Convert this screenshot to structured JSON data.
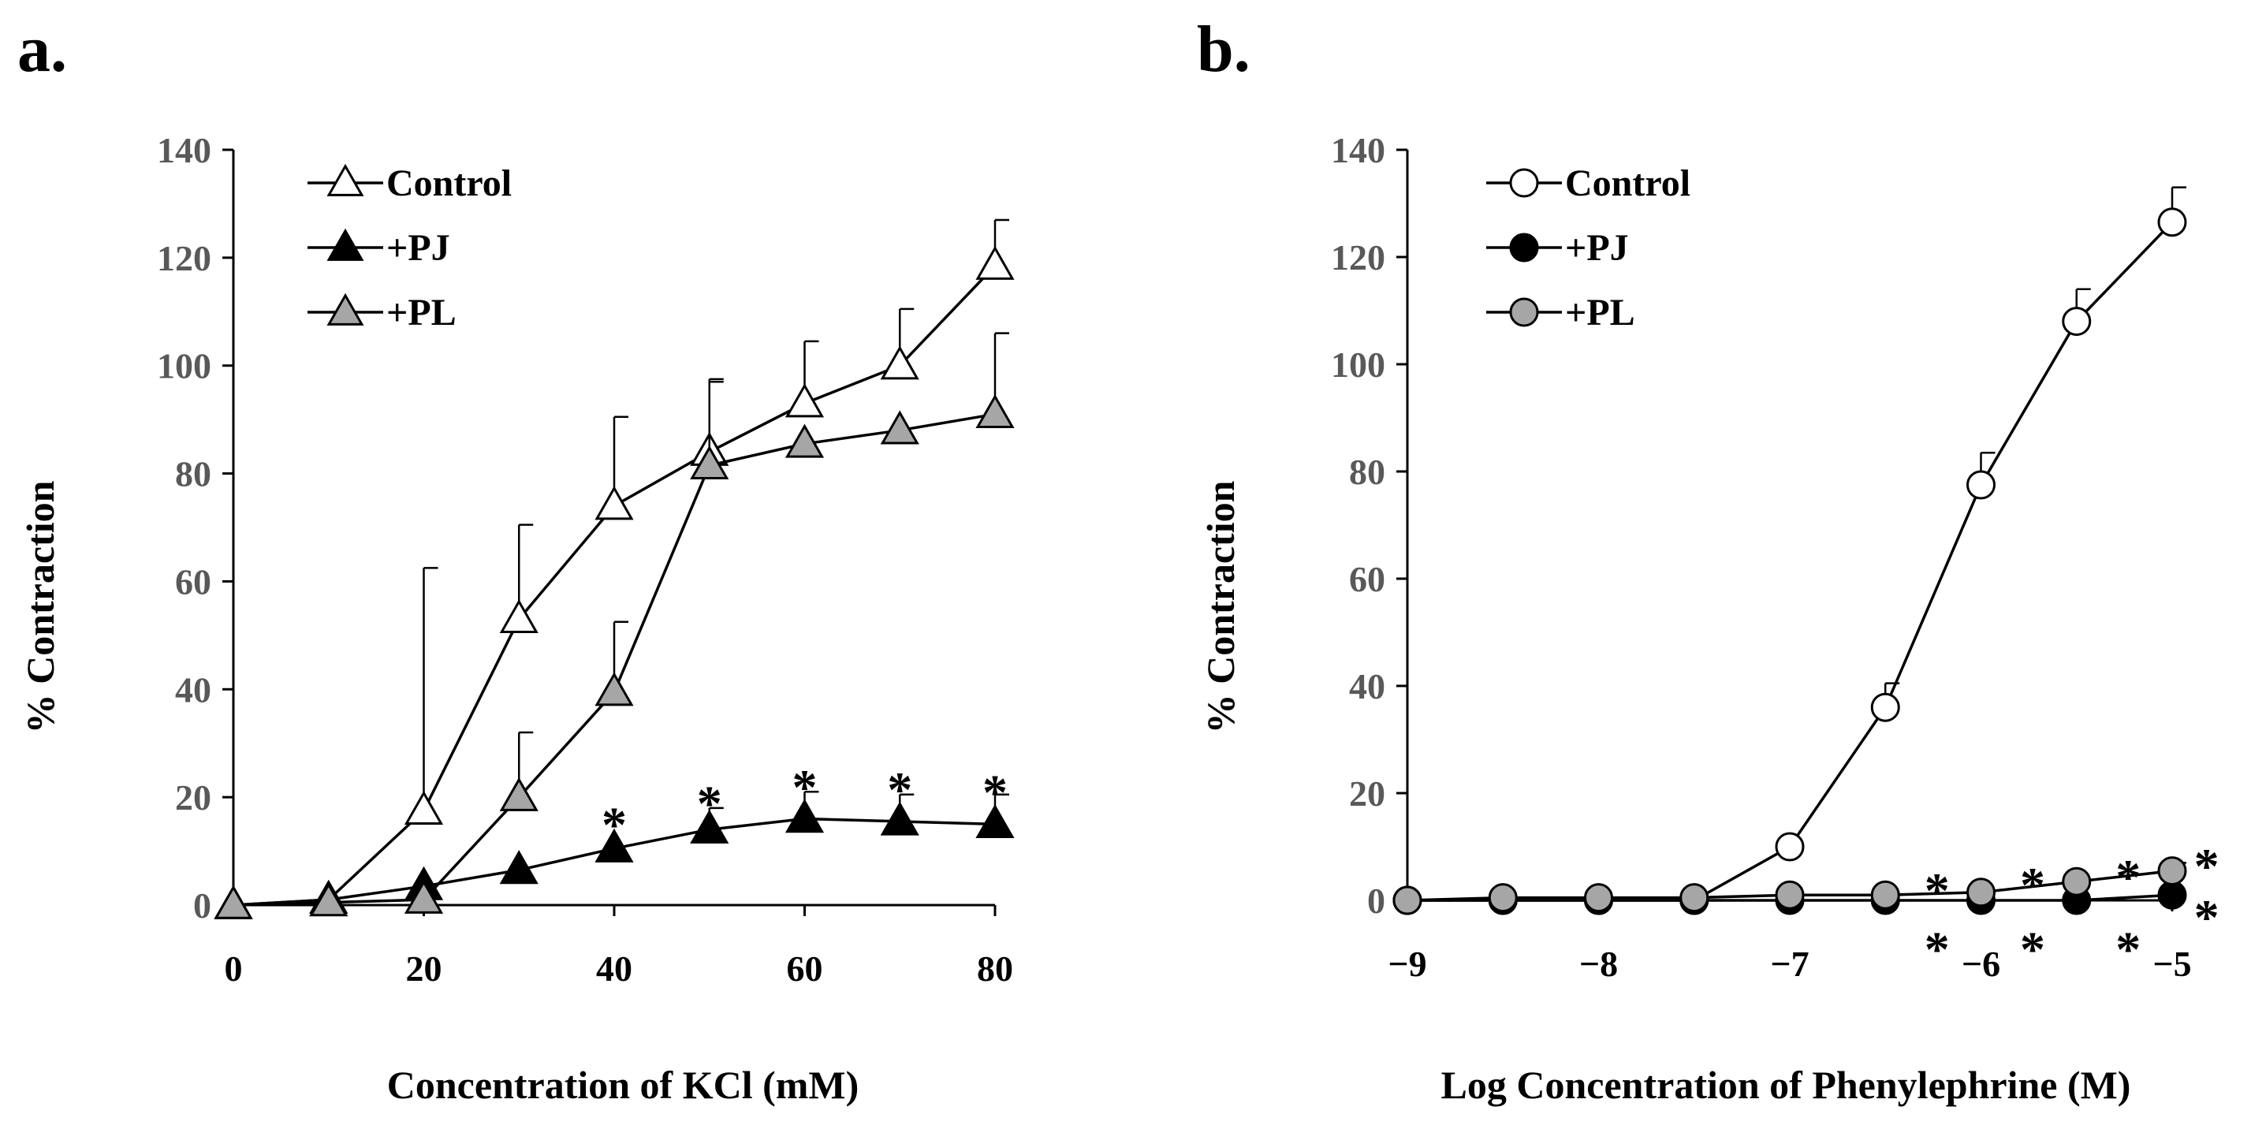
{
  "chart_data": [
    {
      "panel": "a.",
      "type": "line",
      "xlabel": "Concentration of KCl (mM)",
      "ylabel": "% Contraction",
      "xlim": [
        0,
        80
      ],
      "ylim": [
        0,
        140
      ],
      "xticks": [
        "0",
        "20",
        "40",
        "60",
        "80"
      ],
      "xtick_values": [
        0,
        20,
        40,
        60,
        80
      ],
      "yticks": [
        "0",
        "20",
        "40",
        "60",
        "80",
        "100",
        "120",
        "140"
      ],
      "ytick_values": [
        0,
        20,
        40,
        60,
        80,
        100,
        120,
        140
      ],
      "legend_position": "top-left",
      "series": [
        {
          "name": "Control",
          "marker": "triangle",
          "fill": "#ffffff",
          "x": [
            0,
            10,
            20,
            30,
            40,
            50,
            60,
            70,
            80
          ],
          "values": [
            0,
            1,
            17.5,
            53,
            74,
            84,
            93,
            100,
            118.5
          ],
          "error": [
            0,
            0,
            45,
            17.5,
            16.5,
            13.5,
            11.5,
            10.5,
            8.5
          ]
        },
        {
          "name": "+PJ",
          "marker": "triangle",
          "fill": "#000000",
          "x": [
            0,
            10,
            20,
            30,
            40,
            50,
            60,
            70,
            80
          ],
          "values": [
            0,
            1,
            3.5,
            6.5,
            10.5,
            14,
            16,
            15.5,
            15
          ],
          "error": [
            0,
            0,
            0,
            0,
            0,
            4,
            5,
            5,
            5.5
          ]
        },
        {
          "name": "+PL",
          "marker": "triangle",
          "fill": "#a6a6a6",
          "x": [
            0,
            10,
            20,
            30,
            40,
            50,
            60,
            70,
            80
          ],
          "values": [
            0,
            0.5,
            1,
            20,
            39.5,
            81.5,
            85.5,
            88,
            91
          ],
          "error": [
            0,
            0,
            0,
            12,
            13,
            15.5,
            0,
            0,
            15
          ]
        }
      ],
      "annotations": [
        {
          "text": "*",
          "x": 40,
          "y": 17
        },
        {
          "text": "*",
          "x": 50,
          "y": 21
        },
        {
          "text": "*",
          "x": 60,
          "y": 24
        },
        {
          "text": "*",
          "x": 70,
          "y": 23.5
        },
        {
          "text": "*",
          "x": 80,
          "y": 23
        }
      ]
    },
    {
      "panel": "b.",
      "type": "line",
      "xlabel": "Log Concentration of Phenylephrine (M)",
      "ylabel": "% Contraction",
      "xlim": [
        -9,
        -5
      ],
      "ylim": [
        0,
        140
      ],
      "xticks": [
        "−9",
        "−8",
        "−7",
        "−6",
        "−5"
      ],
      "xtick_values": [
        -9,
        -8,
        -7,
        -6,
        -5
      ],
      "yticks": [
        "0",
        "20",
        "40",
        "60",
        "80",
        "100",
        "120",
        "140"
      ],
      "ytick_values": [
        0,
        20,
        40,
        60,
        80,
        100,
        120,
        140
      ],
      "legend_position": "top-left",
      "series": [
        {
          "name": "Control",
          "marker": "circle",
          "fill": "#ffffff",
          "x": [
            -9,
            -8.5,
            -8,
            -7.5,
            -7,
            -6.5,
            -6,
            -5.5,
            -5
          ],
          "values": [
            0,
            0,
            0,
            0,
            10,
            36,
            77.5,
            108,
            126.5
          ],
          "error": [
            0,
            0,
            0,
            0,
            0,
            4.5,
            6,
            6,
            6.5
          ]
        },
        {
          "name": "+PJ",
          "marker": "circle",
          "fill": "#000000",
          "x": [
            -9,
            -8.5,
            -8,
            -7.5,
            -7,
            -6.5,
            -6,
            -5.5,
            -5
          ],
          "values": [
            0,
            0,
            0,
            0,
            0,
            0,
            0,
            0,
            1
          ],
          "error": [
            0,
            0,
            0,
            0,
            0,
            0,
            0,
            0,
            0
          ]
        },
        {
          "name": "+PL",
          "marker": "circle",
          "fill": "#a6a6a6",
          "x": [
            -9,
            -8.5,
            -8,
            -7.5,
            -7,
            -6.5,
            -6,
            -5.5,
            -5
          ],
          "values": [
            0,
            0.5,
            0.5,
            0.5,
            1,
            1,
            1.5,
            3.5,
            5.5
          ],
          "error": [
            0,
            0,
            0,
            0,
            0,
            0,
            0,
            0,
            1.5
          ]
        }
      ],
      "annotations": [
        {
          "text": "*",
          "x": -6.23,
          "y": 4
        },
        {
          "text": "*",
          "x": -5.73,
          "y": 5
        },
        {
          "text": "*",
          "x": -5.23,
          "y": 6.5
        },
        {
          "text": "*",
          "x": -4.82,
          "y": 8.5
        },
        {
          "text": "*",
          "x": -6.23,
          "y": -7
        },
        {
          "text": "*",
          "x": -5.73,
          "y": -7
        },
        {
          "text": "*",
          "x": -5.23,
          "y": -7
        },
        {
          "text": "*",
          "x": -4.82,
          "y": -1
        }
      ]
    }
  ]
}
